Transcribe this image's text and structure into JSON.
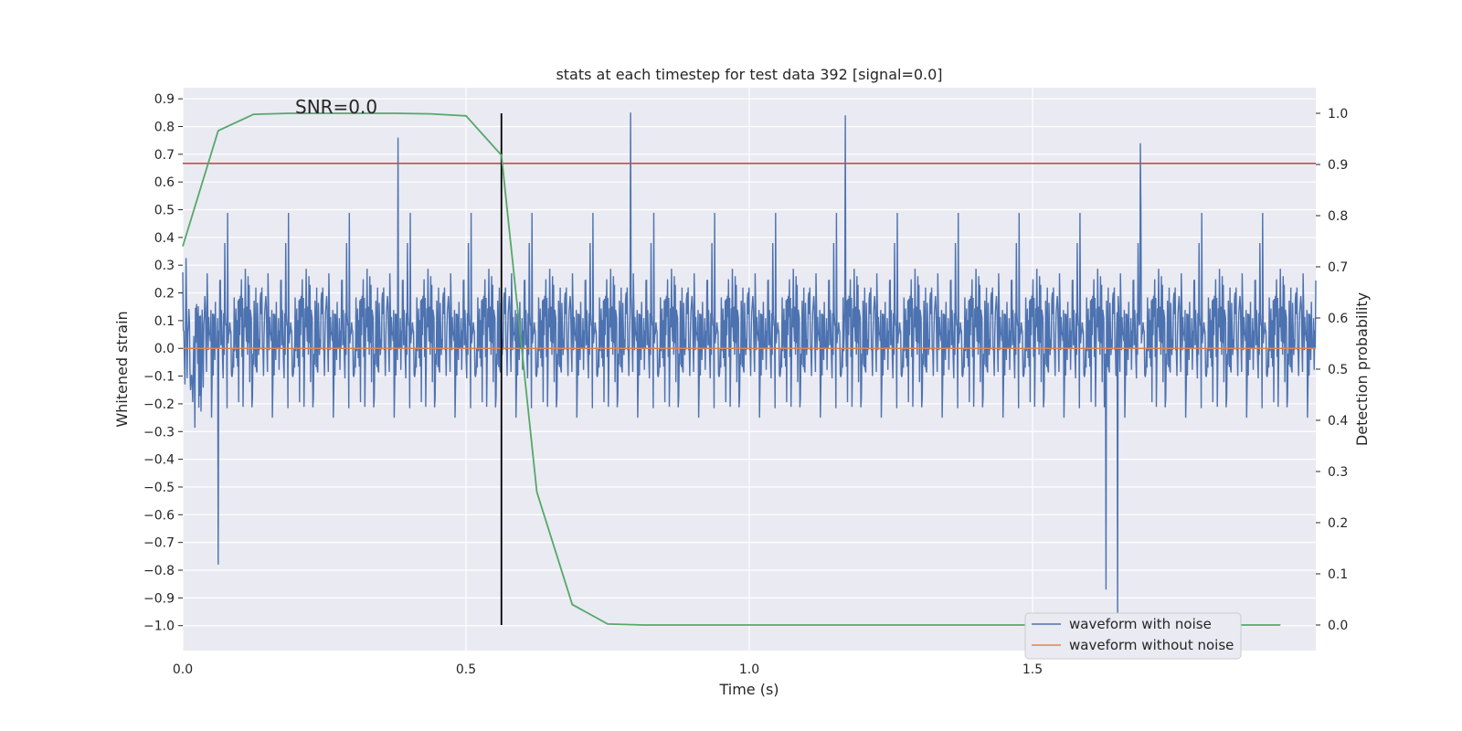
{
  "chart_data": {
    "type": "line",
    "title": "stats at each timestep for test data 392 [signal=0.0]",
    "xlabel": "Time (s)",
    "ylabel": "Whitened strain",
    "y2label": "Detection probability",
    "annotation": "SNR=0.0",
    "xlim": [
      0.0,
      2.0
    ],
    "ylim": [
      -1.09,
      0.94
    ],
    "y2lim": [
      -0.05,
      1.05
    ],
    "x_ticks": [
      0.0,
      0.5,
      1.0,
      1.5
    ],
    "x_tick_labels": [
      "0.0",
      "0.5",
      "1.0",
      "1.5"
    ],
    "y_ticks": [
      -1.0,
      -0.9,
      -0.8,
      -0.7,
      -0.6,
      -0.5,
      -0.4,
      -0.3,
      -0.2,
      -0.1,
      0.0,
      0.1,
      0.2,
      0.3,
      0.4,
      0.5,
      0.6,
      0.7,
      0.8,
      0.9
    ],
    "y_tick_labels": [
      "−1.0",
      "−0.9",
      "−0.8",
      "−0.7",
      "−0.6",
      "−0.5",
      "−0.4",
      "−0.3",
      "−0.2",
      "−0.1",
      "0.0",
      "0.1",
      "0.2",
      "0.3",
      "0.4",
      "0.5",
      "0.6",
      "0.7",
      "0.8",
      "0.9"
    ],
    "y2_ticks": [
      0.0,
      0.1,
      0.2,
      0.3,
      0.4,
      0.5,
      0.6,
      0.7,
      0.8,
      0.9,
      1.0
    ],
    "y2_tick_labels": [
      "0.0",
      "0.1",
      "0.2",
      "0.3",
      "0.4",
      "0.5",
      "0.6",
      "0.7",
      "0.8",
      "0.9",
      "1.0"
    ],
    "grid": true,
    "legend_position": "bottom-right",
    "series": [
      {
        "name": "waveform with noise",
        "color": "#4c72b0",
        "axis": "left",
        "x_range": [
          0.0,
          2.0
        ],
        "num_samples": 2048,
        "approx_range": [
          -0.97,
          0.85
        ],
        "notable_peaks": [
          [
            0.063,
            -0.78
          ],
          [
            0.38,
            0.76
          ],
          [
            0.79,
            0.85
          ],
          [
            1.17,
            0.84
          ],
          [
            1.63,
            -0.87
          ],
          [
            1.65,
            -0.97
          ],
          [
            1.69,
            0.74
          ]
        ]
      },
      {
        "name": "waveform without noise",
        "color": "#dd8452",
        "axis": "left",
        "x": [
          0.0,
          2.0
        ],
        "y": [
          0.0,
          0.0
        ]
      },
      {
        "color": "#55a868",
        "axis": "right",
        "x": [
          0.0,
          0.0625,
          0.125,
          0.1875,
          0.25,
          0.3125,
          0.375,
          0.4375,
          0.5,
          0.5625,
          0.625,
          0.6875,
          0.75,
          0.8125,
          0.875,
          0.9375,
          1.0,
          1.0625,
          1.125,
          1.1875,
          1.25,
          1.3125,
          1.375,
          1.4375,
          1.5,
          1.5625,
          1.625,
          1.6875,
          1.75,
          1.8125,
          1.9375
        ],
        "y": [
          0.74,
          0.966,
          0.998,
          1.0,
          1.0,
          1.0,
          1.0,
          0.999,
          0.995,
          0.918,
          0.26,
          0.04,
          0.002,
          0.0,
          0.0,
          0.0,
          0.0,
          0.0,
          0.0,
          0.0,
          0.0,
          0.0,
          0.0,
          0.0,
          0.0,
          0.0,
          0.0,
          0.0,
          0.0,
          0.0,
          0.0
        ]
      },
      {
        "color": "#c44e52",
        "axis": "left",
        "type": "hline",
        "y": 0.667
      },
      {
        "color": "#000000",
        "axis": "right",
        "type": "vline",
        "x": 0.5625,
        "y_range": [
          0.0,
          1.0
        ]
      }
    ]
  }
}
